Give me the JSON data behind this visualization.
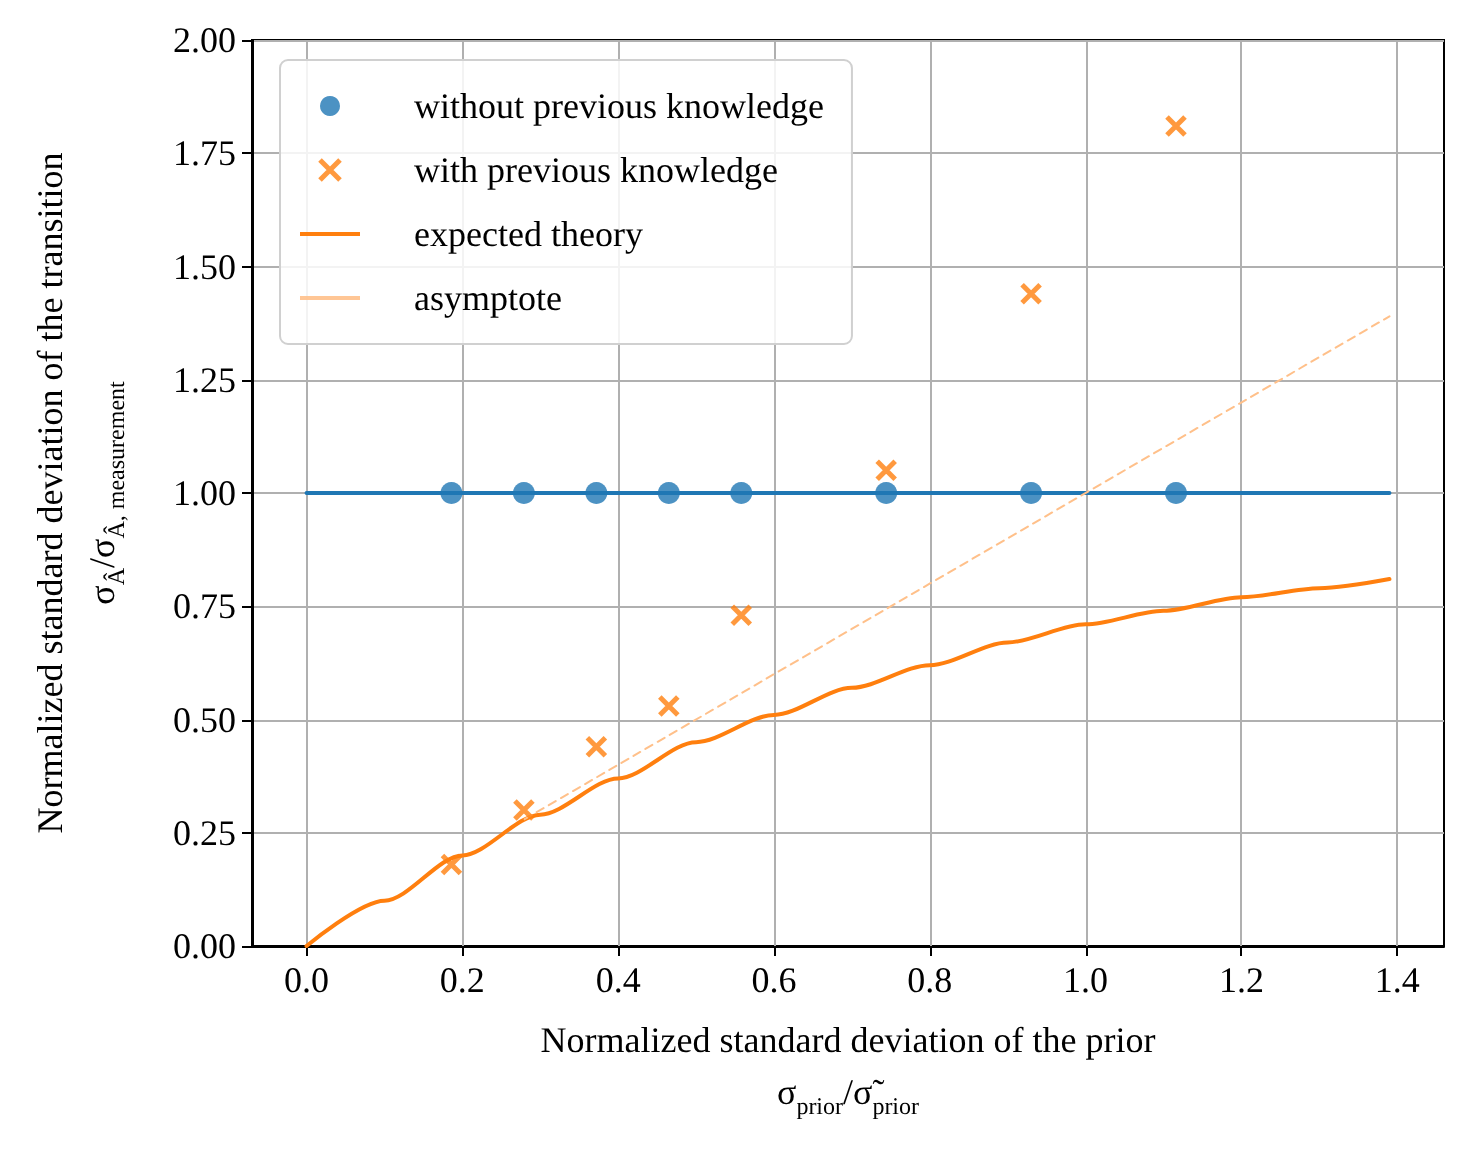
{
  "chart_data": {
    "type": "scatter",
    "xlabel": "Normalized standard deviation of the prior\nσ$_{prior}$/σ̃$_{prior}$",
    "ylabel": "Normalized standard deviation of the transition\nσ$_{Â}$/σ$_{Â, measurement}$",
    "xlim": [
      -0.07,
      1.46
    ],
    "xticks": [
      {
        "value": 0,
        "label": "0.0"
      },
      0.2,
      0.4,
      0.6,
      0.8,
      {
        "value": 1,
        "label": "1.0"
      },
      1.2,
      1.4
    ],
    "ylim": [
      0,
      2
    ],
    "yticks": [
      {
        "value": 0,
        "label": "0.00"
      },
      0.25,
      {
        "value": 0.5,
        "label": "0.50"
      },
      0.75,
      {
        "value": 1,
        "label": "1.00"
      },
      1.25,
      {
        "value": 1.5,
        "label": "1.50"
      },
      1.75,
      {
        "value": 2,
        "label": "2.00"
      }
    ],
    "grid": true,
    "legend": "top left",
    "series": [
      {
        "name": "without previous knowledge",
        "marker": "circle",
        "color": "#1f77b4",
        "x": [
          0.186,
          0.279,
          0.372,
          0.465,
          0.558,
          0.744,
          0.93,
          1.116
        ],
        "values": [
          1,
          1,
          1,
          1,
          1,
          1,
          1,
          1
        ]
      },
      {
        "name": "with previous knowledge",
        "marker": "cross",
        "color": "#ff7f0e",
        "x": [
          0.186,
          0.279,
          0.372,
          0.465,
          0.558,
          0.744,
          0.93,
          1.116
        ],
        "values": [
          0.18,
          0.3,
          0.44,
          0.53,
          0.73,
          1.05,
          1.44,
          1.81
        ]
      },
      {
        "type": "line",
        "marker": "none",
        "line_style": "solid",
        "color": "#1f77b4",
        "x": [
          0,
          1.39
        ],
        "values": [
          1,
          1
        ]
      },
      {
        "name": "expected theory",
        "type": "line",
        "marker": "none",
        "line_style": "solid",
        "color": "#ff7f0e",
        "x": [
          0,
          0.1,
          0.2,
          0.3,
          0.4,
          0.5,
          0.6,
          0.7,
          0.8,
          0.9,
          1.0,
          1.1,
          1.2,
          1.3,
          1.39
        ],
        "values": [
          0,
          0.1,
          0.2,
          0.29,
          0.37,
          0.45,
          0.51,
          0.57,
          0.62,
          0.67,
          0.71,
          0.74,
          0.77,
          0.79,
          0.81
        ]
      },
      {
        "name": "asymptote",
        "type": "line",
        "marker": "none",
        "line_style": "dashed",
        "color": "#ffc08a",
        "x": [
          0.28,
          1.39
        ],
        "values": [
          0.28,
          1.39
        ]
      }
    ]
  }
}
